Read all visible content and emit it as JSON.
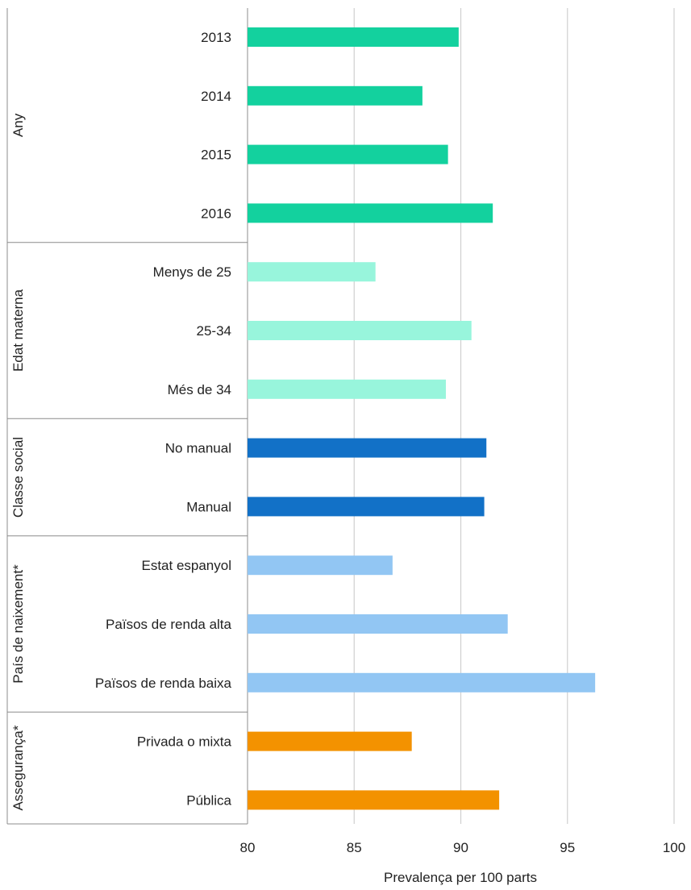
{
  "chart_data": {
    "type": "bar",
    "orientation": "horizontal",
    "xlabel": "Prevalença per 100 parts",
    "xlim": [
      80,
      100
    ],
    "xticks": [
      80,
      85,
      90,
      95,
      100
    ],
    "grid": true,
    "groups": [
      {
        "name": "Any",
        "color": "#13d19e",
        "categories": [
          "2013",
          "2014",
          "2015",
          "2016"
        ],
        "values": [
          89.9,
          88.2,
          89.4,
          91.5
        ]
      },
      {
        "name": "Edat materna",
        "color": "#98f5dc",
        "categories": [
          "Menys de 25",
          "25-34",
          "Més de 34"
        ],
        "values": [
          86.0,
          90.5,
          89.3
        ]
      },
      {
        "name": "Classe social",
        "color": "#1271c7",
        "categories": [
          "No manual",
          "Manual"
        ],
        "values": [
          91.2,
          91.1
        ]
      },
      {
        "name": "País de naixement*",
        "color": "#92c6f3",
        "categories": [
          "Estat espanyol",
          "Països de renda alta",
          "Països de renda baixa"
        ],
        "values": [
          86.8,
          92.2,
          96.3
        ]
      },
      {
        "name": "Assegurança*",
        "color": "#f39200",
        "categories": [
          "Privada o mixta",
          "Pública"
        ],
        "values": [
          87.7,
          91.8
        ]
      }
    ]
  }
}
